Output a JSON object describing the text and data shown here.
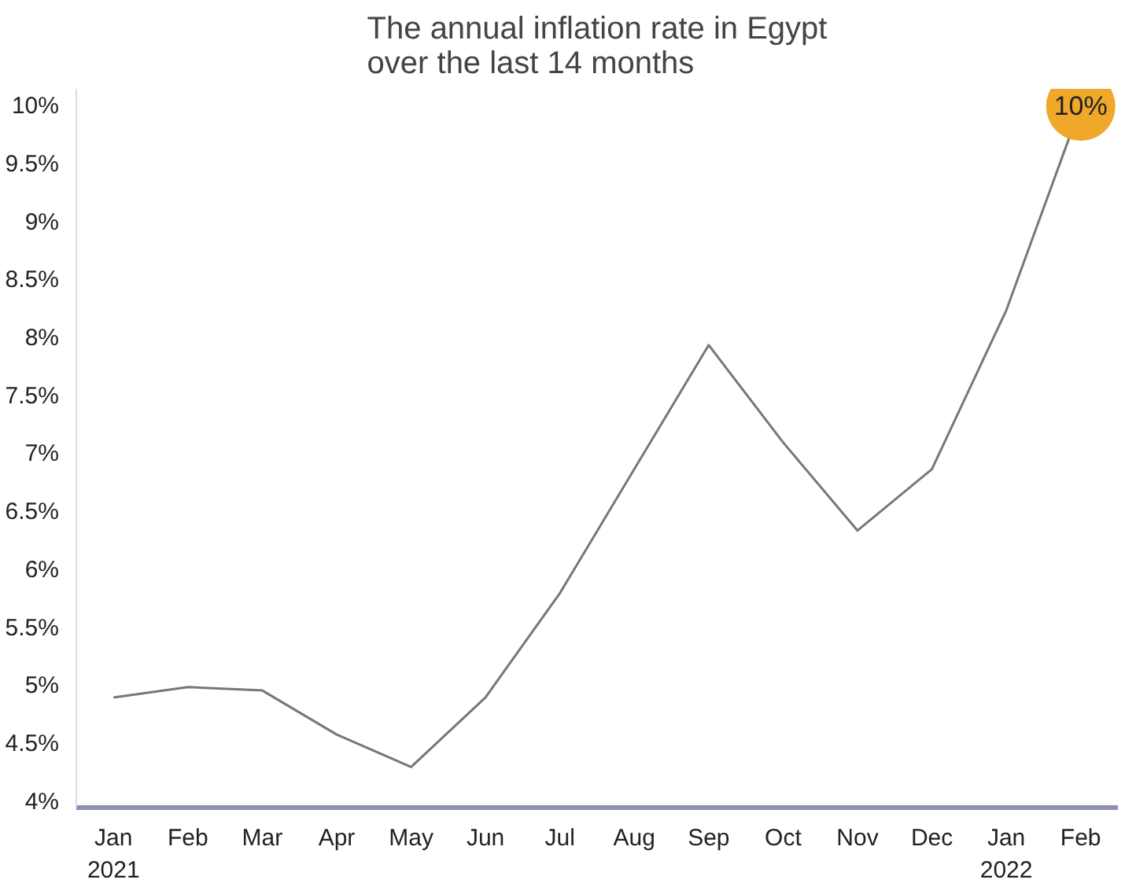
{
  "chart_data": {
    "type": "line",
    "title": "The annual inflation rate in Egypt\nover the last 14 months",
    "categories": [
      "Jan\n2021",
      "Feb",
      "Mar",
      "Apr",
      "May",
      "Jun",
      "Jul",
      "Aug",
      "Sep",
      "Oct",
      "Nov",
      "Dec",
      "Jan\n2022",
      "Feb"
    ],
    "series": [
      {
        "color": "#777777",
        "values": [
          4.9,
          4.99,
          4.96,
          4.58,
          4.3,
          4.9,
          5.8,
          6.87,
          7.94,
          7.1,
          6.34,
          6.87,
          8.24,
          10
        ],
        "value_labels": [
          null,
          null,
          null,
          null,
          null,
          null,
          null,
          null,
          null,
          null,
          null,
          null,
          null,
          "10%"
        ]
      }
    ],
    "ylim": [
      3.95,
      10.15
    ],
    "yticks": [
      {
        "value": 4,
        "label": "4%"
      },
      {
        "value": 4.5,
        "label": "4.5%"
      },
      {
        "value": 5,
        "label": "5%"
      },
      {
        "value": 5.5,
        "label": "5.5%"
      },
      {
        "value": 6,
        "label": "6%"
      },
      {
        "value": 6.5,
        "label": "6.5%"
      },
      {
        "value": 7,
        "label": "7%"
      },
      {
        "value": 7.5,
        "label": "7.5%"
      },
      {
        "value": 8,
        "label": "8%"
      },
      {
        "value": 8.5,
        "label": "8.5%"
      },
      {
        "value": 9,
        "label": "9%"
      },
      {
        "value": 9.5,
        "label": "9.5%"
      },
      {
        "value": 10,
        "label": "10%"
      }
    ],
    "grid": false,
    "marker": "none",
    "line_style": "solid"
  }
}
